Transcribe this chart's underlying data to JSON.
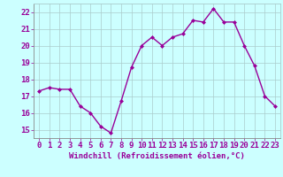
{
  "x": [
    0,
    1,
    2,
    3,
    4,
    5,
    6,
    7,
    8,
    9,
    10,
    11,
    12,
    13,
    14,
    15,
    16,
    17,
    18,
    19,
    20,
    21,
    22,
    23
  ],
  "y": [
    17.3,
    17.5,
    17.4,
    17.4,
    16.4,
    16.0,
    15.2,
    14.8,
    16.7,
    18.7,
    20.0,
    20.5,
    20.0,
    20.5,
    20.7,
    21.5,
    21.4,
    22.2,
    21.4,
    21.4,
    20.0,
    18.8,
    17.0,
    16.4
  ],
  "line_color": "#990099",
  "marker": "D",
  "marker_size": 2,
  "bg_color": "#ccffff",
  "grid_color": "#aacccc",
  "xlabel": "Windchill (Refroidissement éolien,°C)",
  "ylim": [
    14.5,
    22.5
  ],
  "xlim": [
    -0.5,
    23.5
  ],
  "yticks": [
    15,
    16,
    17,
    18,
    19,
    20,
    21,
    22
  ],
  "xticks": [
    0,
    1,
    2,
    3,
    4,
    5,
    6,
    7,
    8,
    9,
    10,
    11,
    12,
    13,
    14,
    15,
    16,
    17,
    18,
    19,
    20,
    21,
    22,
    23
  ],
  "axis_label_color": "#990099",
  "tick_color": "#990099",
  "spine_color": "#888888",
  "font_size_xlabel": 6.5,
  "font_size_tick": 6.5,
  "line_width": 1.0
}
